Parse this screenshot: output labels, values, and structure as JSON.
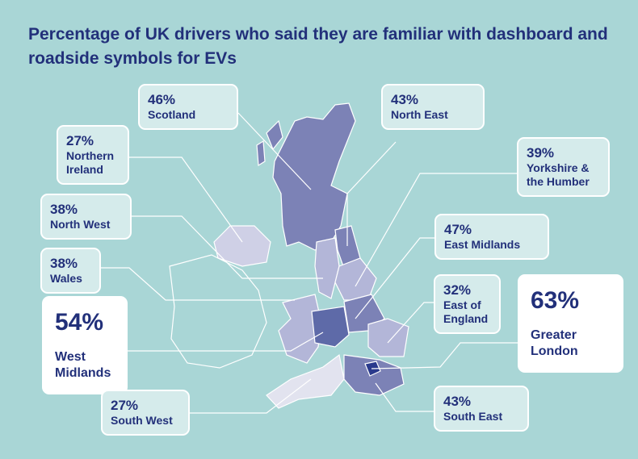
{
  "title": "Percentage of UK drivers who said they are familiar with dashboard and roadside symbols for EVs",
  "regions": [
    {
      "percent": "46%",
      "name": "Scotland"
    },
    {
      "percent": "43%",
      "name": "North East"
    },
    {
      "percent": "27%",
      "name": "Northern Ireland"
    },
    {
      "percent": "39%",
      "name": "Yorkshire & the Humber"
    },
    {
      "percent": "38%",
      "name": "North West"
    },
    {
      "percent": "47%",
      "name": "East Midlands"
    },
    {
      "percent": "38%",
      "name": "Wales"
    },
    {
      "percent": "32%",
      "name": "East of England"
    },
    {
      "percent": "63%",
      "name": "Greater London"
    },
    {
      "percent": "54%",
      "name": "West Midlands"
    },
    {
      "percent": "27%",
      "name": "South West"
    },
    {
      "percent": "43%",
      "name": "South East"
    }
  ]
}
